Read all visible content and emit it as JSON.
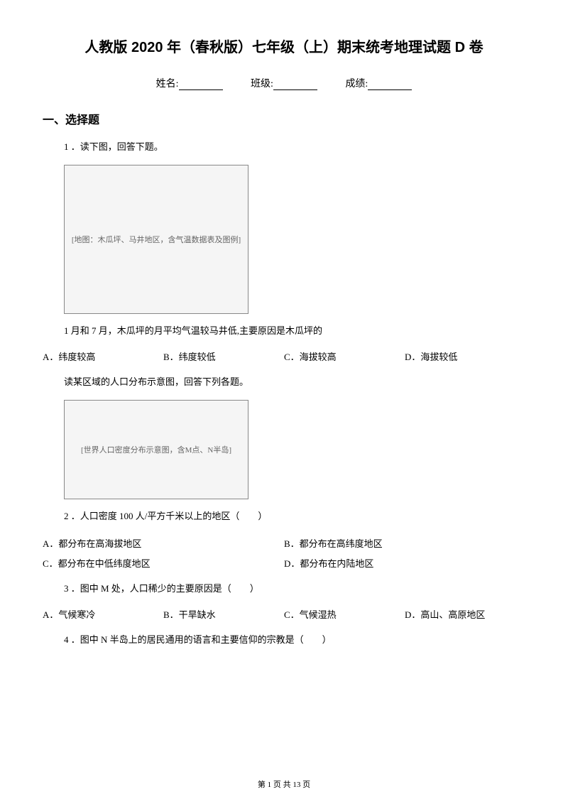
{
  "title": "人教版 2020 年（春秋版）七年级（上）期末统考地理试题 D 卷",
  "info": {
    "name_label": "姓名:",
    "class_label": "班级:",
    "score_label": "成绩:"
  },
  "section1": {
    "heading": "一、选择题",
    "q1_intro": "1 ．读下图，回答下题。",
    "figure1_alt": "[地图：木瓜坪、马井地区，含气温数据表及图例]",
    "q1_text": "1 月和 7 月，木瓜坪的月平均气温较马井低,主要原因是木瓜坪的",
    "q1_options": {
      "a": "A．纬度较高",
      "b": "B．纬度较低",
      "c": "C．海拔较高",
      "d": "D．海拔较低"
    },
    "q2_intro": "读某区域的人口分布示意图，回答下列各题。",
    "figure2_alt": "[世界人口密度分布示意图，含M点、N半岛]",
    "q2_text": "2 ．人口密度 100 人/平方千米以上的地区（　　）",
    "q2_options": {
      "a": "A．都分布在高海拔地区",
      "b": "B．都分布在高纬度地区",
      "c": "C．都分布在中低纬度地区",
      "d": "D．都分布在内陆地区"
    },
    "q3_text": "3 ．图中 M 处，人口稀少的主要原因是（　　）",
    "q3_options": {
      "a": "A．气候寒冷",
      "b": "B．干旱缺水",
      "c": "C．气候湿热",
      "d": "D．高山、高原地区"
    },
    "q4_text": "4 ．图中 N 半岛上的居民通用的语言和主要信仰的宗教是（　　）"
  },
  "footer": "第 1 页 共 13 页"
}
